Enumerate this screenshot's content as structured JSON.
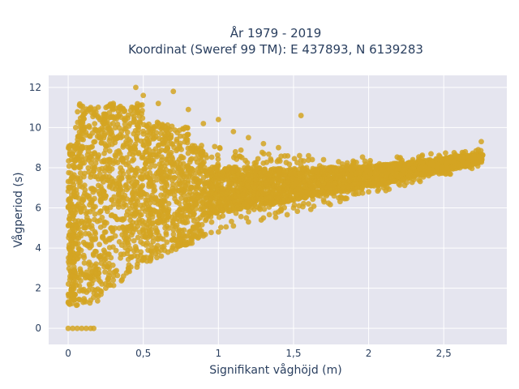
{
  "chart_data": {
    "type": "scatter",
    "title_line1": "År 1979 - 2019",
    "title_line2": "Koordinat (Sweref 99 TM): E 437893, N 6139283",
    "xlabel": "Signifikant våghöjd (m)",
    "ylabel": "Vågperiod (s)",
    "xlim": [
      -0.13,
      2.92
    ],
    "ylim": [
      -0.8,
      12.6
    ],
    "x_ticks": [
      0,
      0.5,
      1,
      1.5,
      2,
      2.5
    ],
    "x_tick_labels": [
      "0",
      "0,5",
      "1",
      "1,5",
      "2",
      "2,5"
    ],
    "y_ticks": [
      0,
      2,
      4,
      6,
      8,
      10,
      12
    ],
    "y_tick_labels": [
      "0",
      "2",
      "4",
      "6",
      "8",
      "10",
      "12"
    ],
    "grid": true,
    "legend": "none",
    "marker_color": "#D4A422",
    "plot_bg": "#E5E5EF",
    "series": [
      {
        "points": [
          [
            0.0,
            0.0
          ],
          [
            0.03,
            0.0
          ],
          [
            0.06,
            0.0
          ],
          [
            0.09,
            0.0
          ],
          [
            0.12,
            0.0
          ],
          [
            0.15,
            0.0
          ],
          [
            0.17,
            0.0
          ],
          [
            0.01,
            1.2
          ],
          [
            0.02,
            1.9
          ],
          [
            0.03,
            2.6
          ],
          [
            0.04,
            3.3
          ],
          [
            0.05,
            4.2
          ],
          [
            0.06,
            5.1
          ],
          [
            0.07,
            6.2
          ],
          [
            0.08,
            7.3
          ],
          [
            0.09,
            8.4
          ],
          [
            0.1,
            9.4
          ],
          [
            0.1,
            1.3
          ],
          [
            0.15,
            1.4
          ],
          [
            0.2,
            1.6
          ],
          [
            0.25,
            2.0
          ],
          [
            0.3,
            2.4
          ],
          [
            0.4,
            3.0
          ],
          [
            0.5,
            3.4
          ],
          [
            0.6,
            3.8
          ],
          [
            0.7,
            4.1
          ],
          [
            0.8,
            4.3
          ],
          [
            0.9,
            4.6
          ],
          [
            1.0,
            4.8
          ],
          [
            1.1,
            5.1
          ],
          [
            1.2,
            5.3
          ],
          [
            1.3,
            5.5
          ],
          [
            1.4,
            5.8
          ],
          [
            1.5,
            6.0
          ],
          [
            1.6,
            6.2
          ],
          [
            1.7,
            6.4
          ],
          [
            1.8,
            6.5
          ],
          [
            1.9,
            6.7
          ],
          [
            2.0,
            6.8
          ],
          [
            2.1,
            7.0
          ],
          [
            2.2,
            7.2
          ],
          [
            2.3,
            7.4
          ],
          [
            2.4,
            7.6
          ],
          [
            2.5,
            7.8
          ],
          [
            2.6,
            8.1
          ],
          [
            2.7,
            8.6
          ],
          [
            2.75,
            9.3
          ],
          [
            2.73,
            8.9
          ],
          [
            0.2,
            10.5
          ],
          [
            0.3,
            11.2
          ],
          [
            0.45,
            12.0
          ],
          [
            0.5,
            11.6
          ],
          [
            0.6,
            11.2
          ],
          [
            0.7,
            11.8
          ],
          [
            0.8,
            10.9
          ],
          [
            0.9,
            10.2
          ],
          [
            1.0,
            10.4
          ],
          [
            1.1,
            9.8
          ],
          [
            1.2,
            9.5
          ],
          [
            1.3,
            9.2
          ],
          [
            1.4,
            9.0
          ],
          [
            1.55,
            10.6
          ],
          [
            1.6,
            8.6
          ],
          [
            1.7,
            8.4
          ],
          [
            1.8,
            8.3
          ],
          [
            1.9,
            8.2
          ],
          [
            2.0,
            8.1
          ],
          [
            0.05,
            10.0
          ],
          [
            0.12,
            9.0
          ],
          [
            0.15,
            11.0
          ],
          [
            0.35,
            9.5
          ],
          [
            0.25,
            8.0
          ],
          [
            0.4,
            7.0
          ],
          [
            0.55,
            6.5
          ],
          [
            0.65,
            6.0
          ],
          [
            0.75,
            6.0
          ],
          [
            0.85,
            6.2
          ]
        ]
      }
    ]
  }
}
